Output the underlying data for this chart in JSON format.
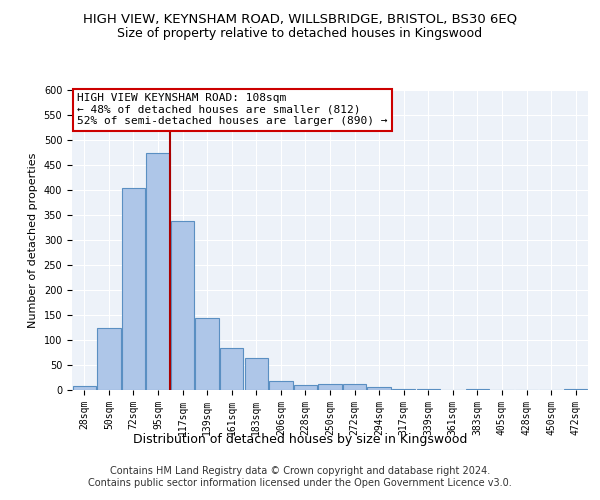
{
  "title": "HIGH VIEW, KEYNSHAM ROAD, WILLSBRIDGE, BRISTOL, BS30 6EQ",
  "subtitle": "Size of property relative to detached houses in Kingswood",
  "xlabel": "Distribution of detached houses by size in Kingswood",
  "ylabel": "Number of detached properties",
  "categories": [
    "28sqm",
    "50sqm",
    "72sqm",
    "95sqm",
    "117sqm",
    "139sqm",
    "161sqm",
    "183sqm",
    "206sqm",
    "228sqm",
    "250sqm",
    "272sqm",
    "294sqm",
    "317sqm",
    "339sqm",
    "361sqm",
    "383sqm",
    "405sqm",
    "428sqm",
    "450sqm",
    "472sqm"
  ],
  "values": [
    8,
    125,
    405,
    475,
    338,
    145,
    85,
    65,
    18,
    10,
    13,
    13,
    6,
    3,
    3,
    0,
    3,
    0,
    0,
    0,
    3
  ],
  "bar_color": "#aec6e8",
  "bar_edge_color": "#5a8fc2",
  "vline_pos": 3.5,
  "vline_color": "#aa0000",
  "annotation_text": "HIGH VIEW KEYNSHAM ROAD: 108sqm\n← 48% of detached houses are smaller (812)\n52% of semi-detached houses are larger (890) →",
  "annotation_box_color": "#ffffff",
  "annotation_box_edge": "#cc0000",
  "ylim": [
    0,
    600
  ],
  "yticks": [
    0,
    50,
    100,
    150,
    200,
    250,
    300,
    350,
    400,
    450,
    500,
    550,
    600
  ],
  "footer": "Contains HM Land Registry data © Crown copyright and database right 2024.\nContains public sector information licensed under the Open Government Licence v3.0.",
  "bg_color": "#edf2f9",
  "grid_color": "#ffffff",
  "title_fontsize": 9.5,
  "subtitle_fontsize": 9,
  "ylabel_fontsize": 8,
  "xlabel_fontsize": 9,
  "footer_fontsize": 7,
  "annotation_fontsize": 8
}
